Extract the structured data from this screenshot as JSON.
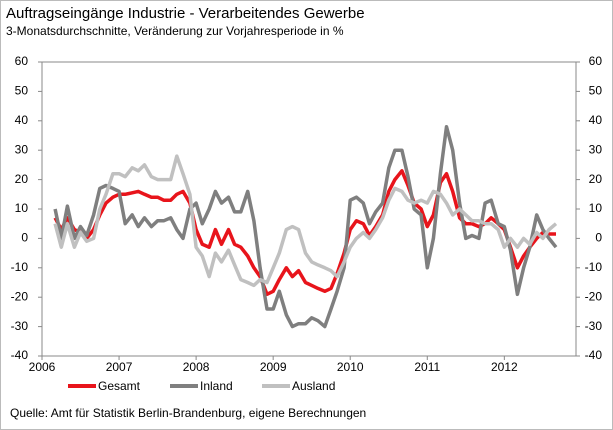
{
  "chart_data": {
    "type": "line",
    "title": "Auftragseingänge Industrie - Verarbeitendes Gewerbe",
    "subtitle": "3-Monatsdurchschnitte,  Veränderung zur Vorjahresperiode  in %",
    "source": "Quelle: Amt für Statistik Berlin-Brandenburg,  eigene Berechnungen",
    "x": [
      2006.17,
      2006.25,
      2006.33,
      2006.42,
      2006.5,
      2006.58,
      2006.67,
      2006.75,
      2006.83,
      2006.92,
      2007,
      2007.08,
      2007.17,
      2007.25,
      2007.33,
      2007.42,
      2007.5,
      2007.58,
      2007.67,
      2007.75,
      2007.83,
      2007.92,
      2008,
      2008.08,
      2008.17,
      2008.25,
      2008.33,
      2008.42,
      2008.5,
      2008.58,
      2008.67,
      2008.75,
      2008.83,
      2008.92,
      2009,
      2009.08,
      2009.17,
      2009.25,
      2009.33,
      2009.42,
      2009.5,
      2009.58,
      2009.67,
      2009.75,
      2009.83,
      2009.92,
      2010,
      2010.08,
      2010.17,
      2010.25,
      2010.33,
      2010.42,
      2010.5,
      2010.58,
      2010.67,
      2010.75,
      2010.83,
      2010.92,
      2011,
      2011.08,
      2011.17,
      2011.25,
      2011.33,
      2011.42,
      2011.5,
      2011.58,
      2011.67,
      2011.75,
      2011.83,
      2011.92,
      2012,
      2012.08,
      2012.17,
      2012.25,
      2012.33,
      2012.42,
      2012.5,
      2012.58,
      2012.67
    ],
    "series": [
      {
        "name": "Gesamt",
        "color": "#e8141b",
        "values": [
          7,
          3,
          7,
          3,
          2,
          0,
          3,
          8,
          12,
          14,
          15,
          15,
          15.5,
          16,
          15,
          14,
          14,
          13,
          13,
          15,
          16,
          12,
          3,
          -2,
          -3,
          3,
          -2,
          3,
          -2,
          -3,
          -6,
          -10,
          -13,
          -19,
          -18,
          -14,
          -10,
          -13,
          -11,
          -15,
          -16,
          -17,
          -18,
          -17,
          -12,
          -5,
          3,
          6,
          5,
          1,
          4,
          8,
          16,
          20,
          23,
          18,
          12,
          10,
          4,
          8,
          19,
          22,
          16,
          7,
          5,
          5,
          4,
          5,
          7,
          5,
          3,
          -3,
          -10,
          -6,
          -3,
          0,
          2,
          1.5,
          1.5
        ]
      },
      {
        "name": "Inland",
        "color": "#7f7f7f",
        "values": [
          10,
          0,
          11,
          0,
          4,
          1,
          8,
          17,
          18,
          17,
          16,
          5,
          8,
          4,
          7,
          4,
          6,
          6,
          7,
          3,
          0,
          10,
          12,
          5,
          10,
          16,
          12,
          14,
          9,
          9,
          16,
          6,
          -10,
          -24,
          -24,
          -18,
          -26,
          -30,
          -29,
          -29,
          -27,
          -28,
          -30,
          -24,
          -18,
          -10,
          13,
          14,
          12,
          5,
          9,
          12,
          24,
          30,
          30,
          21,
          10,
          8,
          -10,
          0,
          22,
          38,
          30,
          12,
          0,
          1,
          0,
          12,
          13,
          5,
          4,
          -4,
          -19,
          -10,
          -3,
          8,
          3,
          0,
          -3
        ]
      },
      {
        "name": "Ausland",
        "color": "#c0c0c0",
        "values": [
          5,
          -3,
          5,
          -3,
          2,
          -1,
          0,
          10,
          15,
          22,
          22,
          21,
          24,
          23,
          25,
          21,
          20,
          20,
          20,
          28,
          22,
          15,
          -3,
          -6,
          -13,
          -5,
          -8,
          -4,
          -9,
          -14,
          -15,
          -16,
          -14,
          -15,
          -10,
          -5,
          3,
          4,
          3,
          -5,
          -8,
          -9,
          -10,
          -11,
          -13,
          -8,
          -3,
          0,
          2,
          0,
          3,
          7,
          13,
          17,
          16,
          13,
          12,
          13,
          12,
          16,
          15,
          12,
          8,
          10,
          8,
          6,
          6,
          5,
          5,
          3,
          -3,
          0,
          -3,
          0,
          -2,
          2,
          0,
          3,
          5
        ]
      }
    ],
    "xlim": [
      2006,
      2012.93
    ],
    "xticks": [
      2006,
      2007,
      2008,
      2009,
      2010,
      2011,
      2012
    ],
    "ylim": [
      -40,
      60
    ],
    "yticks": [
      -40,
      -30,
      -20,
      -10,
      0,
      10,
      20,
      30,
      40,
      50,
      60
    ],
    "y2lim": [
      -40,
      60
    ],
    "y2ticks": [
      -40,
      -30,
      -20,
      -10,
      0,
      10,
      20,
      30,
      40,
      50,
      60
    ],
    "legend": "bottom"
  }
}
